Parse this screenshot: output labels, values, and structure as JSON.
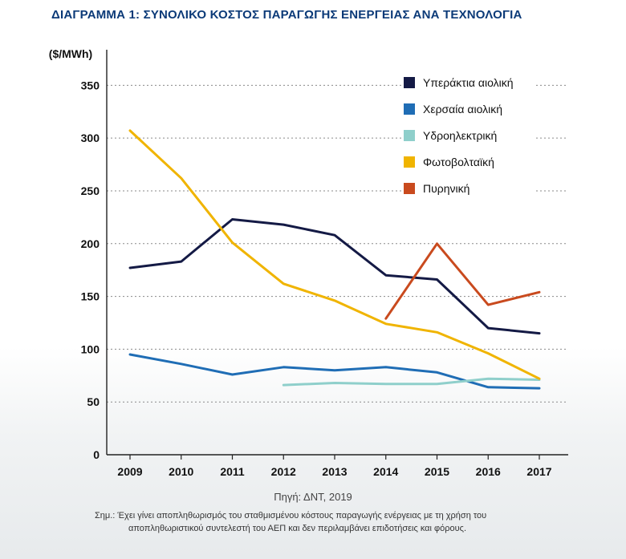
{
  "chart_data": {
    "type": "line",
    "title": "ΔΙΑΓΡΑΜΜΑ 1: ΣΥΝΟΛΙΚΟ ΚΟΣΤΟΣ ΠΑΡΑΓΩΓΗΣ ΕΝΕΡΓΕΙΑΣ ΑΝΑ ΤΕΧΝΟΛΟΓΙΑ",
    "ylabel": "($/MWh)",
    "xlabel": "",
    "x": [
      "2009",
      "2010",
      "2011",
      "2012",
      "2013",
      "2014",
      "2015",
      "2016",
      "2017"
    ],
    "yticks": [
      0,
      50,
      100,
      150,
      200,
      250,
      300,
      350
    ],
    "ylim": [
      0,
      370
    ],
    "grid": "horizontal-dotted",
    "legend_position": "top-right",
    "series": [
      {
        "name": "Υπεράκτια αιολική",
        "color": "#141a45",
        "values": [
          177,
          183,
          223,
          218,
          208,
          170,
          166,
          120,
          115
        ]
      },
      {
        "name": "Χερσαία αιολική",
        "color": "#1f6db5",
        "values": [
          95,
          86,
          76,
          83,
          80,
          83,
          78,
          64,
          63
        ]
      },
      {
        "name": "Υδροηλεκτρική",
        "color": "#8fcfcb",
        "values": [
          null,
          null,
          null,
          66,
          68,
          67,
          67,
          72,
          71
        ]
      },
      {
        "name": "Φωτοβολταϊκή",
        "color": "#f0b400",
        "values": [
          307,
          262,
          201,
          162,
          146,
          124,
          116,
          96,
          72
        ]
      },
      {
        "name": "Πυρηνική",
        "color": "#c94a1e",
        "values": [
          null,
          null,
          null,
          null,
          null,
          129,
          200,
          142,
          154
        ]
      }
    ]
  },
  "source": "Πηγή: ΔΝΤ, 2019",
  "note": {
    "line1": "Σημ.: Έχει γίνει αποπληθωρισμός του σταθμισμένου κόστους παραγωγής ενέργειας με τη χρήση του",
    "line2": "αποπληθωριστικού συντελεστή του ΑΕΠ και δεν περιλαμβάνει επιδοτήσεις και φόρους."
  }
}
